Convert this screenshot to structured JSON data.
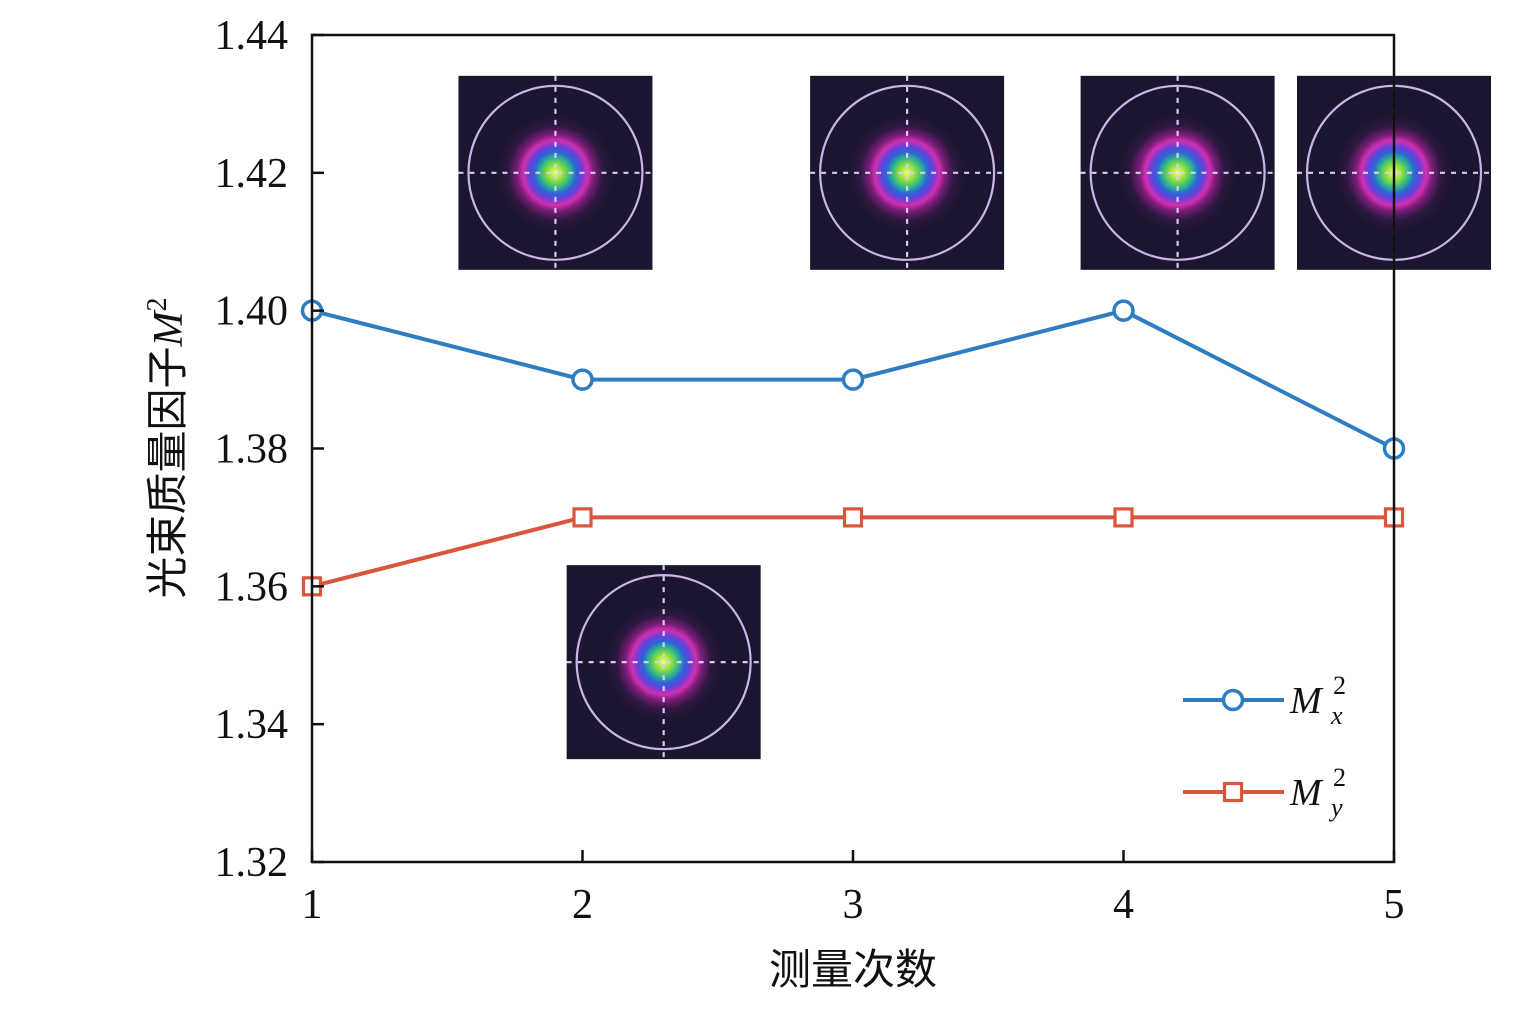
{
  "chart_data": {
    "type": "line",
    "title": "",
    "xlabel": "测量次数",
    "ylabel": "光束质量因子M²",
    "ylabel_text": "光束质量因子",
    "ylabel_symbol": "M",
    "ylabel_sup": "2",
    "x": [
      1,
      2,
      3,
      4,
      5
    ],
    "x_ticks": [
      "1",
      "2",
      "3",
      "4",
      "5"
    ],
    "y_ticks": [
      "1.32",
      "1.34",
      "1.36",
      "1.38",
      "1.40",
      "1.42",
      "1.44"
    ],
    "ylim": [
      1.32,
      1.44
    ],
    "xlim": [
      1,
      5
    ],
    "grid": false,
    "legend_position": "bottom-right",
    "series": [
      {
        "name": "M_x^2",
        "legend_base": "M",
        "legend_sup": "2",
        "legend_sub": "x",
        "marker": "circle",
        "color": "#2E7DC0",
        "values": [
          1.4,
          1.39,
          1.39,
          1.4,
          1.38
        ]
      },
      {
        "name": "M_y^2",
        "legend_base": "M",
        "legend_sup": "2",
        "legend_sub": "y",
        "marker": "square",
        "color": "#D9553B",
        "values": [
          1.36,
          1.37,
          1.37,
          1.37,
          1.37
        ]
      }
    ],
    "insets": [
      {
        "name": "beam-profile-1",
        "x": 1.9,
        "y": 1.42
      },
      {
        "name": "beam-profile-2",
        "x": 3.2,
        "y": 1.42
      },
      {
        "name": "beam-profile-3",
        "x": 4.2,
        "y": 1.42
      },
      {
        "name": "beam-profile-4",
        "x": 5.0,
        "y": 1.42
      },
      {
        "name": "beam-profile-5",
        "x": 2.3,
        "y": 1.349
      }
    ]
  }
}
